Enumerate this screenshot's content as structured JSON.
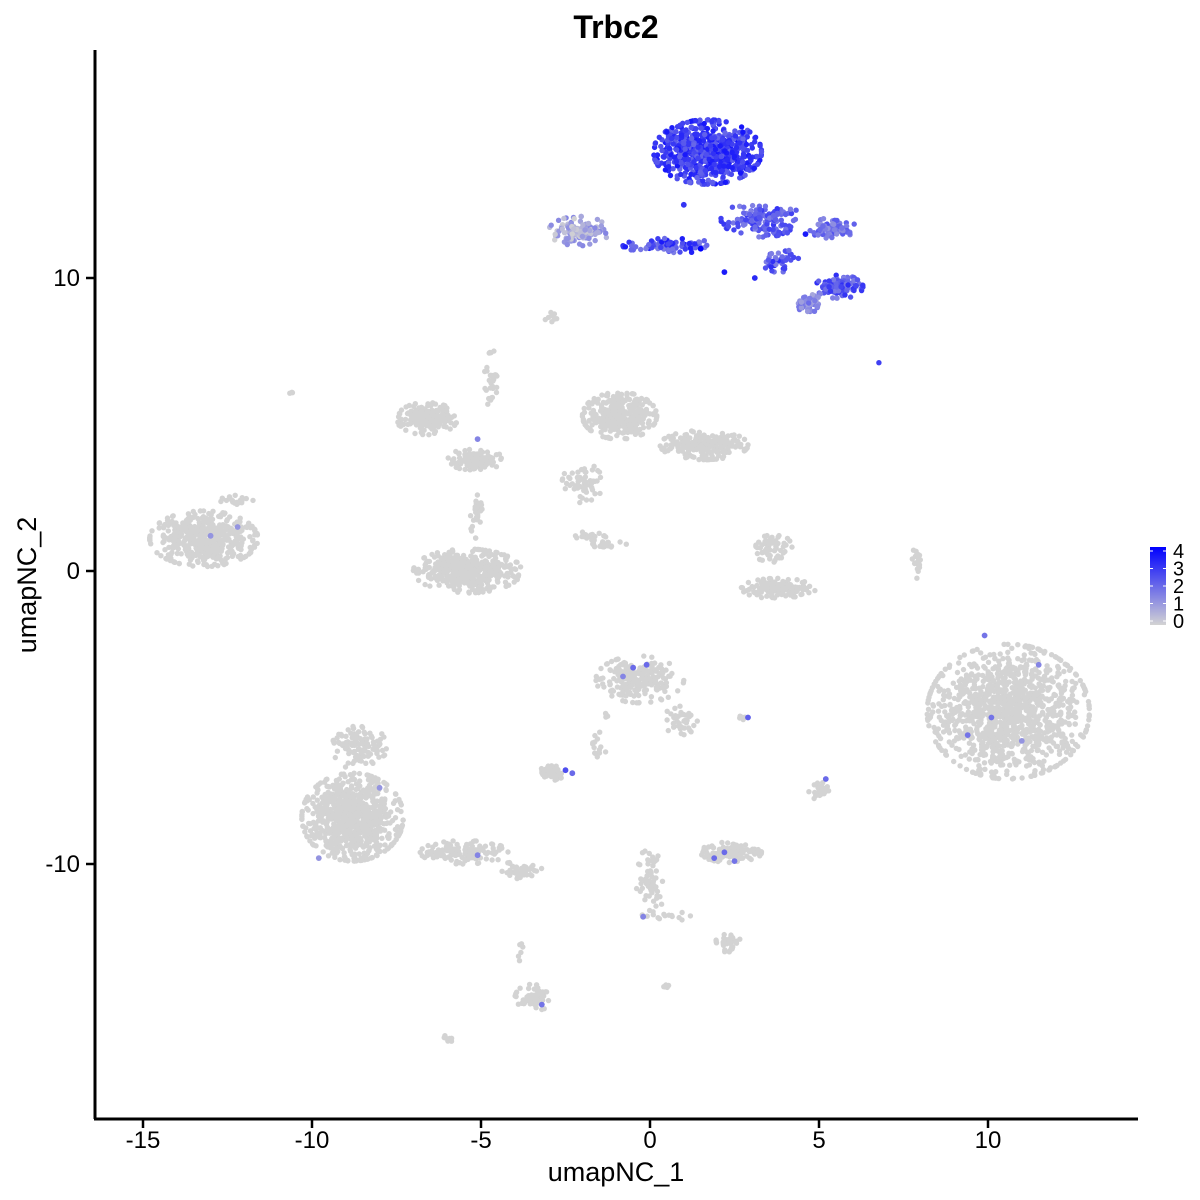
{
  "chart_data": {
    "type": "scatter",
    "title": "Trbc2",
    "xlabel": "umapNC_1",
    "ylabel": "umapNC_2",
    "xlim": [
      -16.5,
      14.5
    ],
    "ylim": [
      -18.5,
      17.5
    ],
    "xticks": [
      -15,
      -10,
      -5,
      0,
      5,
      10
    ],
    "yticks": [
      -10,
      0,
      10
    ],
    "xtick_labels": [
      "-15",
      "-10",
      "-5",
      "0",
      "5",
      "10"
    ],
    "ytick_labels": [
      "-10",
      "0",
      "10"
    ],
    "grid": false,
    "legend": {
      "position": "right",
      "title": "",
      "values": [
        0,
        1,
        2,
        3,
        4
      ],
      "labels": [
        "0",
        "1",
        "2",
        "3",
        "4"
      ]
    },
    "color_scale": {
      "low": "#d3d3d3",
      "high": "#0000ff",
      "min": 0,
      "max": 4
    },
    "series": [
      {
        "clusters": [
          {
            "cx": 1.7,
            "cy": 14.3,
            "rx": 1.6,
            "ry": 1.1,
            "n": 700,
            "expr": [
              2.0,
              3.6
            ]
          },
          {
            "cx": 3.3,
            "cy": 12.0,
            "rx": 1.2,
            "ry": 0.6,
            "n": 160,
            "expr": [
              1.5,
              3.0
            ]
          },
          {
            "cx": 5.4,
            "cy": 11.7,
            "rx": 0.7,
            "ry": 0.35,
            "n": 70,
            "expr": [
              1.2,
              2.5
            ]
          },
          {
            "cx": 0.6,
            "cy": 11.1,
            "rx": 1.4,
            "ry": 0.25,
            "n": 90,
            "expr": [
              1.5,
              3.6
            ]
          },
          {
            "cx": -2.1,
            "cy": 11.6,
            "rx": 0.9,
            "ry": 0.5,
            "n": 110,
            "expr": [
              0.0,
              1.5
            ]
          },
          {
            "cx": 5.6,
            "cy": 9.7,
            "rx": 0.7,
            "ry": 0.4,
            "n": 110,
            "expr": [
              1.5,
              3.2
            ]
          },
          {
            "cx": 4.7,
            "cy": 9.1,
            "rx": 0.4,
            "ry": 0.35,
            "n": 50,
            "expr": [
              0.8,
              2.0
            ]
          },
          {
            "cx": 3.8,
            "cy": 10.6,
            "rx": 0.6,
            "ry": 0.4,
            "n": 40,
            "expr": [
              1.5,
              3.2
            ]
          },
          {
            "cx": -2.9,
            "cy": 8.7,
            "rx": 0.25,
            "ry": 0.2,
            "n": 10,
            "expr": [
              0,
              0
            ]
          },
          {
            "cx": -4.7,
            "cy": 6.5,
            "rx": 0.2,
            "ry": 1.1,
            "n": 30,
            "expr": [
              0,
              0
            ]
          },
          {
            "cx": -6.6,
            "cy": 5.2,
            "rx": 0.9,
            "ry": 0.55,
            "n": 180,
            "expr": [
              0,
              0
            ]
          },
          {
            "cx": -5.2,
            "cy": 3.8,
            "rx": 0.9,
            "ry": 0.35,
            "n": 110,
            "expr": [
              0,
              0
            ]
          },
          {
            "cx": -5.1,
            "cy": 2.0,
            "rx": 0.25,
            "ry": 0.9,
            "n": 30,
            "expr": [
              0,
              0
            ]
          },
          {
            "cx": -5.4,
            "cy": 0.0,
            "rx": 1.6,
            "ry": 0.75,
            "n": 450,
            "expr": [
              0,
              0
            ]
          },
          {
            "cx": -0.9,
            "cy": 5.3,
            "rx": 1.1,
            "ry": 0.8,
            "n": 320,
            "expr": [
              0,
              0
            ]
          },
          {
            "cx": 1.6,
            "cy": 4.3,
            "rx": 1.3,
            "ry": 0.5,
            "n": 240,
            "expr": [
              0,
              0
            ]
          },
          {
            "cx": -2.0,
            "cy": 3.0,
            "rx": 0.6,
            "ry": 0.7,
            "n": 60,
            "expr": [
              0,
              0
            ]
          },
          {
            "cx": -1.8,
            "cy": 1.2,
            "rx": 0.6,
            "ry": 0.2,
            "n": 20,
            "expr": [
              0,
              0
            ]
          },
          {
            "cx": -1.2,
            "cy": 0.9,
            "rx": 0.5,
            "ry": 0.15,
            "n": 20,
            "expr": [
              0,
              0
            ]
          },
          {
            "cx": 3.8,
            "cy": -0.6,
            "rx": 1.1,
            "ry": 0.35,
            "n": 150,
            "expr": [
              0,
              0
            ]
          },
          {
            "cx": 3.6,
            "cy": 0.8,
            "rx": 0.6,
            "ry": 0.5,
            "n": 60,
            "expr": [
              0,
              0
            ]
          },
          {
            "cx": 7.9,
            "cy": 0.3,
            "rx": 0.15,
            "ry": 0.7,
            "n": 20,
            "expr": [
              0,
              0
            ]
          },
          {
            "cx": -13.2,
            "cy": 1.1,
            "rx": 1.6,
            "ry": 0.95,
            "n": 480,
            "expr": [
              0,
              0
            ]
          },
          {
            "cx": -12.2,
            "cy": 2.4,
            "rx": 0.5,
            "ry": 0.2,
            "n": 20,
            "expr": [
              0,
              0
            ]
          },
          {
            "cx": -10.6,
            "cy": 6.1,
            "rx": 0.1,
            "ry": 0.1,
            "n": 3,
            "expr": [
              0,
              0
            ]
          },
          {
            "cx": 10.6,
            "cy": -4.8,
            "rx": 2.4,
            "ry": 2.3,
            "n": 1200,
            "expr": [
              0,
              0
            ]
          },
          {
            "cx": -0.3,
            "cy": -3.7,
            "rx": 1.3,
            "ry": 0.8,
            "n": 220,
            "expr": [
              0,
              0
            ]
          },
          {
            "cx": 0.9,
            "cy": -5.1,
            "rx": 0.5,
            "ry": 0.5,
            "n": 40,
            "expr": [
              0,
              0
            ]
          },
          {
            "cx": -2.9,
            "cy": -6.9,
            "rx": 0.4,
            "ry": 0.25,
            "n": 70,
            "expr": [
              0,
              0
            ]
          },
          {
            "cx": -1.5,
            "cy": -6.0,
            "rx": 0.2,
            "ry": 0.5,
            "n": 15,
            "expr": [
              0,
              0
            ]
          },
          {
            "cx": -1.3,
            "cy": -4.9,
            "rx": 0.1,
            "ry": 0.2,
            "n": 6,
            "expr": [
              0,
              0
            ]
          },
          {
            "cx": 2.8,
            "cy": -5.0,
            "rx": 0.15,
            "ry": 0.1,
            "n": 6,
            "expr": [
              0,
              0
            ]
          },
          {
            "cx": 5.0,
            "cy": -7.5,
            "rx": 0.3,
            "ry": 0.3,
            "n": 25,
            "expr": [
              0,
              0
            ]
          },
          {
            "cx": -8.8,
            "cy": -8.4,
            "rx": 1.5,
            "ry": 1.5,
            "n": 800,
            "expr": [
              0,
              0
            ]
          },
          {
            "cx": -8.6,
            "cy": -6.0,
            "rx": 0.8,
            "ry": 0.8,
            "n": 120,
            "expr": [
              0,
              0
            ]
          },
          {
            "cx": -5.5,
            "cy": -9.6,
            "rx": 1.3,
            "ry": 0.4,
            "n": 130,
            "expr": [
              0,
              0
            ]
          },
          {
            "cx": -3.9,
            "cy": -10.2,
            "rx": 0.7,
            "ry": 0.3,
            "n": 40,
            "expr": [
              0,
              0
            ]
          },
          {
            "cx": 2.4,
            "cy": -9.6,
            "rx": 0.9,
            "ry": 0.35,
            "n": 130,
            "expr": [
              0,
              0
            ]
          },
          {
            "cx": 0.0,
            "cy": -10.7,
            "rx": 0.4,
            "ry": 1.3,
            "n": 60,
            "expr": [
              0,
              0
            ]
          },
          {
            "cx": 2.3,
            "cy": -12.7,
            "rx": 0.4,
            "ry": 0.3,
            "n": 35,
            "expr": [
              0,
              0
            ]
          },
          {
            "cx": 0.6,
            "cy": -11.8,
            "rx": 0.6,
            "ry": 0.2,
            "n": 12,
            "expr": [
              0,
              0
            ]
          },
          {
            "cx": -3.5,
            "cy": -14.6,
            "rx": 0.5,
            "ry": 0.5,
            "n": 60,
            "expr": [
              0,
              0
            ]
          },
          {
            "cx": -3.8,
            "cy": -13.0,
            "rx": 0.1,
            "ry": 0.6,
            "n": 6,
            "expr": [
              0,
              0
            ]
          },
          {
            "cx": -6.0,
            "cy": -16.0,
            "rx": 0.2,
            "ry": 0.15,
            "n": 8,
            "expr": [
              0,
              0
            ]
          },
          {
            "cx": 0.5,
            "cy": -14.2,
            "rx": 0.2,
            "ry": 0.1,
            "n": 5,
            "expr": [
              0,
              0
            ]
          },
          {
            "cx": 6.8,
            "cy": 7.1,
            "rx": 0.05,
            "ry": 0.05,
            "n": 1,
            "expr": [
              2.8,
              2.8
            ]
          }
        ],
        "highlights": [
          {
            "x": -5.1,
            "y": 4.5,
            "v": 1.5
          },
          {
            "x": -13.0,
            "y": 1.2,
            "v": 1.2
          },
          {
            "x": -12.2,
            "y": 1.5,
            "v": 1.2
          },
          {
            "x": -0.5,
            "y": -3.3,
            "v": 2.0
          },
          {
            "x": -0.1,
            "y": -3.2,
            "v": 2.0
          },
          {
            "x": -0.8,
            "y": -3.6,
            "v": 1.5
          },
          {
            "x": 2.9,
            "y": -5.0,
            "v": 2.2
          },
          {
            "x": -2.5,
            "y": -6.8,
            "v": 2.5
          },
          {
            "x": -2.3,
            "y": -6.9,
            "v": 2.0
          },
          {
            "x": 5.2,
            "y": -7.1,
            "v": 2.0
          },
          {
            "x": 9.9,
            "y": -2.2,
            "v": 1.8
          },
          {
            "x": 11.5,
            "y": -3.2,
            "v": 1.5
          },
          {
            "x": 10.1,
            "y": -5.0,
            "v": 1.8
          },
          {
            "x": 9.4,
            "y": -5.6,
            "v": 1.8
          },
          {
            "x": 11.0,
            "y": -5.8,
            "v": 1.2
          },
          {
            "x": -8.0,
            "y": -7.4,
            "v": 1.2
          },
          {
            "x": -9.8,
            "y": -9.8,
            "v": 1.2
          },
          {
            "x": -5.1,
            "y": -9.7,
            "v": 1.5
          },
          {
            "x": 1.9,
            "y": -9.8,
            "v": 2.0
          },
          {
            "x": 2.2,
            "y": -9.6,
            "v": 2.0
          },
          {
            "x": 2.5,
            "y": -9.9,
            "v": 1.8
          },
          {
            "x": -0.2,
            "y": -11.8,
            "v": 1.5
          },
          {
            "x": -3.2,
            "y": -14.8,
            "v": 1.8
          },
          {
            "x": 2.2,
            "y": 10.2,
            "v": 3.5
          },
          {
            "x": 1.5,
            "y": 11.0,
            "v": 4.0
          },
          {
            "x": 3.1,
            "y": 10.0,
            "v": 3.2
          },
          {
            "x": 4.6,
            "y": 11.5,
            "v": 3.5
          },
          {
            "x": 1.0,
            "y": 12.5,
            "v": 3.0
          }
        ]
      }
    ]
  }
}
